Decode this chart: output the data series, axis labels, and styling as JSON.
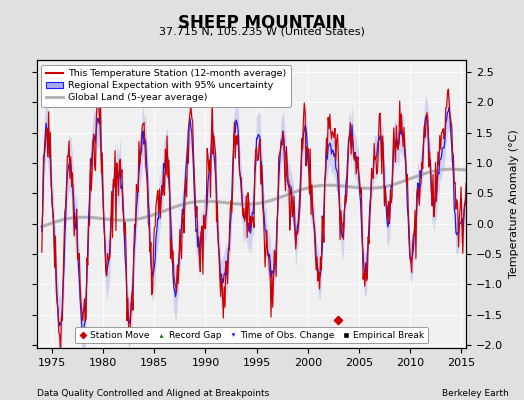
{
  "title": "SHEEP MOUNTAIN",
  "subtitle": "37.715 N, 105.235 W (United States)",
  "xlabel_bottom": "Data Quality Controlled and Aligned at Breakpoints",
  "xlabel_right": "Berkeley Earth",
  "ylabel": "Temperature Anomaly (°C)",
  "xlim": [
    1973.5,
    2015.5
  ],
  "ylim": [
    -2.05,
    2.7
  ],
  "yticks": [
    -2,
    -1.5,
    -1,
    -0.5,
    0,
    0.5,
    1,
    1.5,
    2,
    2.5
  ],
  "xticks": [
    1975,
    1980,
    1985,
    1990,
    1995,
    2000,
    2005,
    2010,
    2015
  ],
  "bg_color": "#e0e0e0",
  "plot_bg_color": "#f0f0f0",
  "red_color": "#cc0000",
  "blue_color": "#1a1aff",
  "blue_fill_color": "#aaaaee",
  "gray_color": "#b0b0b0",
  "station_move_year": 2003.0,
  "station_move_val": -1.58
}
